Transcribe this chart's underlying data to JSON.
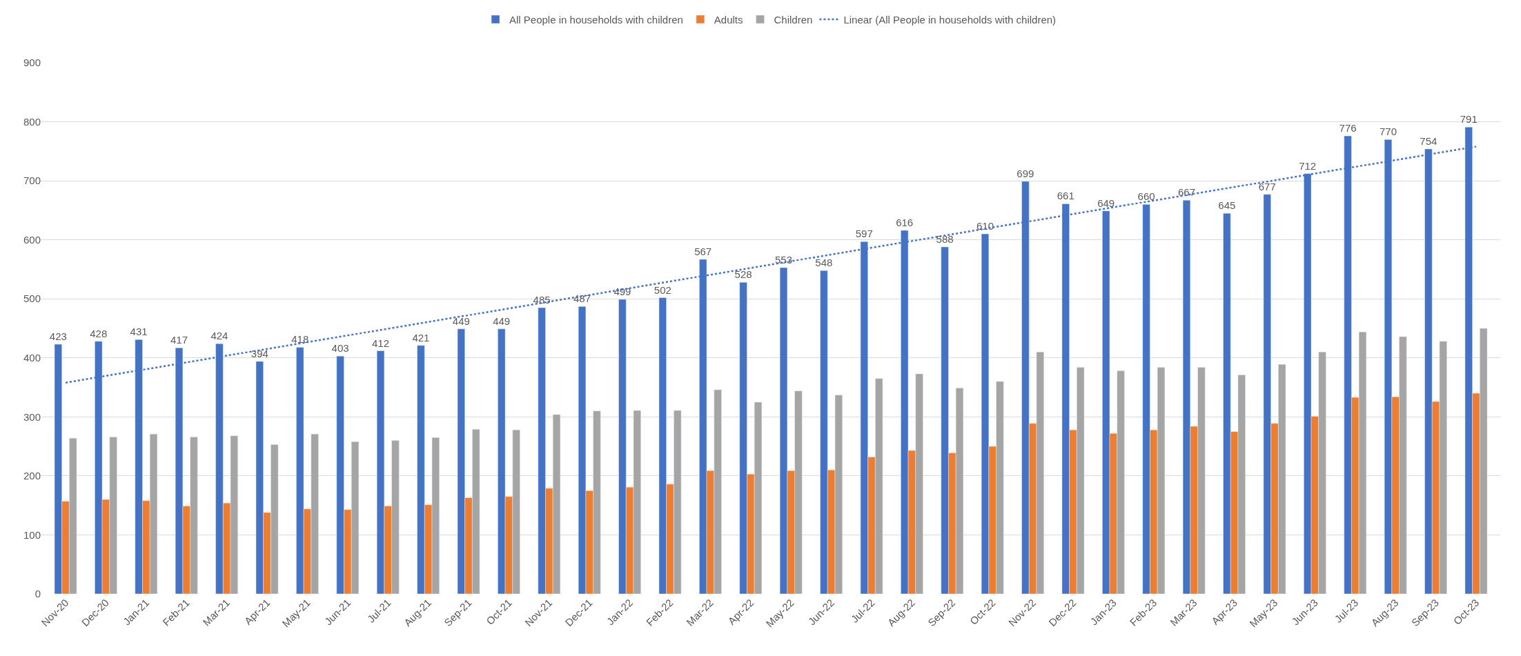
{
  "chart_data": {
    "type": "bar",
    "categories": [
      "Nov-20",
      "Dec-20",
      "Jan-21",
      "Feb-21",
      "Mar-21",
      "Apr-21",
      "May-21",
      "Jun-21",
      "Jul-21",
      "Aug-21",
      "Sep-21",
      "Oct-21",
      "Nov-21",
      "Dec-21",
      "Jan-22",
      "Feb-22",
      "Mar-22",
      "Apr-22",
      "May-22",
      "Jun-22",
      "Jul-22",
      "Aug-22",
      "Sep-22",
      "Oct-22",
      "Nov-22",
      "Dec-22",
      "Jan-23",
      "Feb-23",
      "Mar-23",
      "Apr-23",
      "May-23",
      "Jun-23",
      "Jul-23",
      "Aug-23",
      "Sep-23",
      "Oct-23"
    ],
    "series": [
      {
        "name": "All People in households with children",
        "color": "#4472c4",
        "values": [
          423,
          428,
          431,
          417,
          424,
          394,
          418,
          403,
          412,
          421,
          449,
          449,
          485,
          487,
          499,
          502,
          567,
          528,
          553,
          548,
          597,
          616,
          588,
          610,
          699,
          661,
          649,
          660,
          667,
          645,
          677,
          712,
          776,
          770,
          754,
          791
        ],
        "value_labels": [
          "423",
          "428",
          "431",
          "417",
          "424",
          "394",
          "418",
          "403",
          "412",
          "421",
          "449",
          "449",
          "485",
          "487",
          "499",
          "502",
          "567",
          "528",
          "553",
          "548",
          "597",
          "616",
          "588",
          "610",
          "699",
          "661",
          "649",
          "660",
          "667",
          "645",
          "677",
          "712",
          "776",
          "770",
          "754",
          "791"
        ]
      },
      {
        "name": "Adults",
        "color": "#ed7d31",
        "values": [
          157,
          160,
          158,
          149,
          154,
          138,
          144,
          143,
          149,
          151,
          163,
          165,
          179,
          175,
          181,
          186,
          209,
          203,
          209,
          210,
          232,
          243,
          239,
          250,
          289,
          278,
          272,
          278,
          284,
          275,
          289,
          301,
          333,
          334,
          326,
          340
        ]
      },
      {
        "name": "Children",
        "color": "#a5a5a5",
        "values": [
          264,
          266,
          271,
          266,
          268,
          253,
          271,
          258,
          260,
          265,
          279,
          278,
          304,
          310,
          311,
          311,
          346,
          325,
          344,
          337,
          365,
          373,
          349,
          360,
          410,
          384,
          378,
          384,
          384,
          371,
          389,
          410,
          444,
          436,
          428,
          450
        ]
      },
      {
        "name": "Linear (All People in households with children)",
        "type": "line",
        "color": "#4472c4",
        "line_style": "dotted",
        "x": [
          "Nov-20",
          "Oct-23"
        ],
        "values": [
          358,
          758
        ]
      }
    ],
    "ylim": [
      0,
      900
    ],
    "yticks": [
      0,
      100,
      200,
      300,
      400,
      500,
      600,
      700,
      800,
      900
    ],
    "grid": "y",
    "legend": "top"
  }
}
